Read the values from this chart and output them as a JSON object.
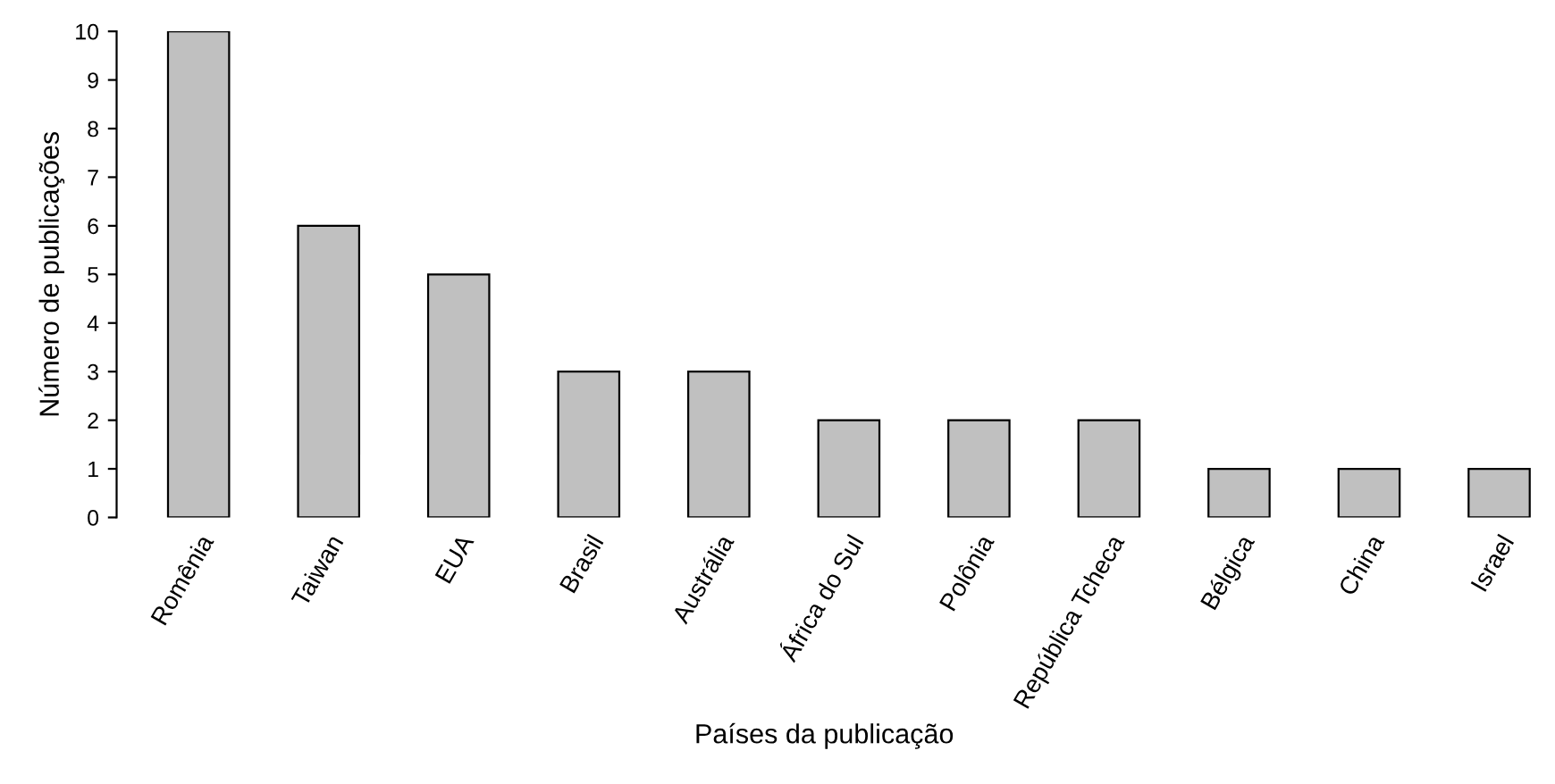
{
  "chart_data": {
    "type": "bar",
    "xlabel": "Países da publicação",
    "ylabel": "Número de publicações",
    "categories": [
      "Romênia",
      "Taiwan",
      "EUA",
      "Brasil",
      "Austrália",
      "África do Sul",
      "Polônia",
      "República Tcheca",
      "Bélgica",
      "China",
      "Israel"
    ],
    "values": [
      10,
      6,
      5,
      3,
      3,
      2,
      2,
      2,
      1,
      1,
      1
    ],
    "color": "#c0c0c0",
    "ylim": [
      0,
      10
    ],
    "yticks": [
      0,
      1,
      2,
      3,
      4,
      5,
      6,
      7,
      8,
      9,
      10
    ],
    "grid": false,
    "legend": false
  }
}
